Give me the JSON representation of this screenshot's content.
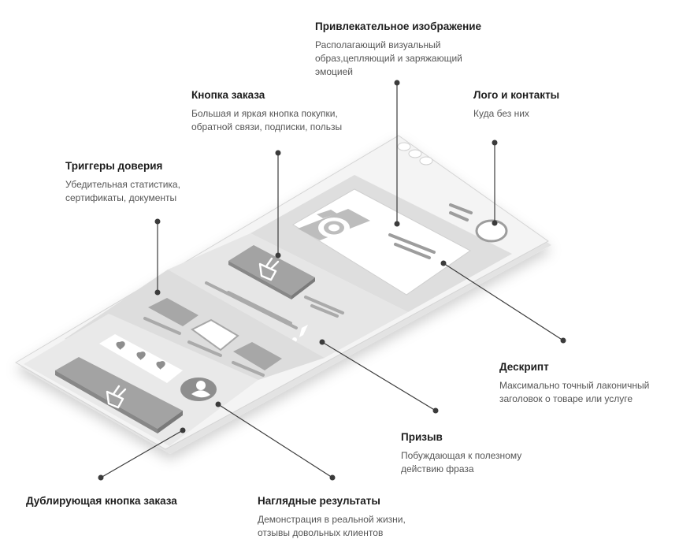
{
  "callouts": {
    "image": {
      "title": "Привлекательное изображение",
      "desc": [
        "Располагающий визуальный",
        "образ,цепляющий и заряжающий",
        "эмоцией"
      ]
    },
    "order_button": {
      "title": "Кнопка заказа",
      "desc": [
        "Большая и яркая кнопка покупки,",
        "обратной связи, подписки, пользы"
      ]
    },
    "logo_contacts": {
      "title": "Лого и контакты",
      "desc": [
        "Куда без них"
      ]
    },
    "trust_triggers": {
      "title": "Триггеры доверия",
      "desc": [
        "Убедительная статистика,",
        "сертификаты, документы"
      ]
    },
    "descript": {
      "title": "Дескрипт",
      "desc": [
        "Максимально точный лаконичный",
        "заголовок о товаре или услуге"
      ]
    },
    "call": {
      "title": "Призыв",
      "desc": [
        "Побуждающая к полезному",
        "действию фраза"
      ]
    },
    "duplicate_order": {
      "title": "Дублирующая кнопка заказа",
      "desc": []
    },
    "results": {
      "title": "Наглядные результаты",
      "desc": [
        "Демонстрация в реальной жизни,",
        "отзывы довольных клиентов"
      ]
    }
  },
  "icons": {
    "camera": "camera-icon",
    "basket": "basket-icon",
    "heart": "heart-icon",
    "avatar": "avatar-icon",
    "exclamation": "exclamation-icon",
    "logo_circle": "logo-circle-icon"
  },
  "colors": {
    "panel": "#f2f2f2",
    "panel_edge": "#d0d0d0",
    "section": "#d9d9d9",
    "block": "#b4b4b4",
    "dark_block": "#9b9b9b",
    "line": "#6e6e6e",
    "dot": "#3b3b3b"
  }
}
